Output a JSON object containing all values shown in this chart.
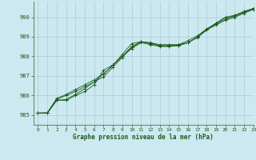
{
  "title": "Graphe pression niveau de la mer (hPa)",
  "background_color": "#cce8f0",
  "grid_color": "#aaccd8",
  "line_color": "#1a5c1a",
  "xlim": [
    -0.5,
    23
  ],
  "ylim": [
    984.5,
    990.8
  ],
  "yticks": [
    985,
    986,
    987,
    988,
    989,
    990
  ],
  "xticks": [
    0,
    1,
    2,
    3,
    4,
    5,
    6,
    7,
    8,
    9,
    10,
    11,
    12,
    13,
    14,
    15,
    16,
    17,
    18,
    19,
    20,
    21,
    22,
    23
  ],
  "s1": [
    985.1,
    985.1,
    985.75,
    985.75,
    986.0,
    986.2,
    986.55,
    987.3,
    987.55,
    988.1,
    988.65,
    988.75,
    988.7,
    988.6,
    988.6,
    988.6,
    988.8,
    989.05,
    989.4,
    989.7,
    990.0,
    990.1,
    990.3,
    990.45
  ],
  "s2": [
    985.1,
    985.1,
    985.75,
    985.8,
    986.05,
    986.35,
    986.7,
    987.1,
    987.55,
    988.0,
    988.5,
    988.75,
    988.68,
    988.55,
    988.55,
    988.55,
    988.7,
    988.95,
    989.35,
    989.6,
    989.85,
    990.0,
    990.2,
    990.4
  ],
  "s3": [
    985.1,
    985.1,
    985.8,
    986.0,
    986.2,
    986.45,
    986.7,
    986.95,
    987.45,
    987.95,
    988.45,
    988.75,
    988.65,
    988.55,
    988.55,
    988.6,
    988.7,
    988.98,
    989.35,
    989.65,
    989.9,
    990.05,
    990.25,
    990.42
  ],
  "s4": [
    985.1,
    985.12,
    985.85,
    986.05,
    986.3,
    986.55,
    986.8,
    987.1,
    987.55,
    988.0,
    988.4,
    988.7,
    988.6,
    988.5,
    988.5,
    988.55,
    988.7,
    988.98,
    989.38,
    989.68,
    989.98,
    990.08,
    990.28,
    990.45
  ]
}
